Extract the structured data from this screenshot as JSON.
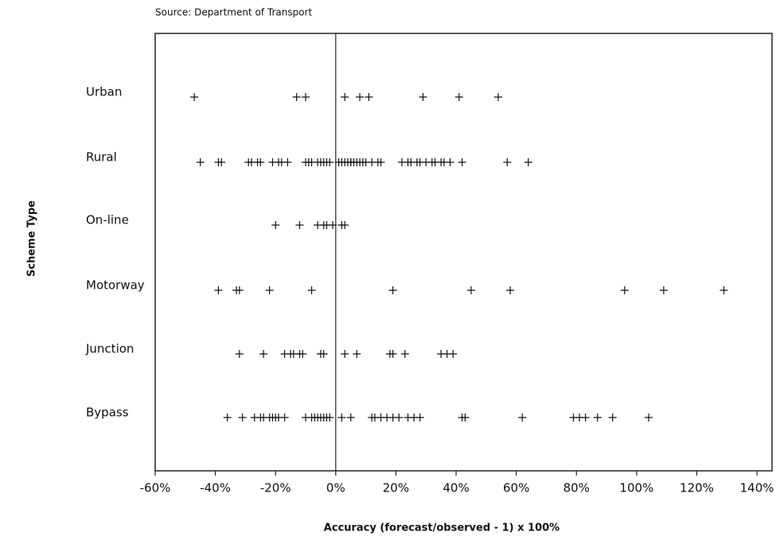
{
  "chart_data": {
    "type": "strip",
    "source": "Source:    Department of Transport",
    "ylabel": "Scheme Type",
    "xlabel": "Accuracy (forecast/observed - 1) x 100%",
    "color": "#111111",
    "xlim": [
      -60,
      145
    ],
    "xticks": [
      {
        "value": -60,
        "label": "-60%"
      },
      {
        "value": -40,
        "label": "-40%"
      },
      {
        "value": -20,
        "label": "-20%"
      },
      {
        "value": 0,
        "label": "0%"
      },
      {
        "value": 20,
        "label": "20%"
      },
      {
        "value": 40,
        "label": "40%"
      },
      {
        "value": 60,
        "label": "60%"
      },
      {
        "value": 80,
        "label": "80%"
      },
      {
        "value": 100,
        "label": "100%"
      },
      {
        "value": 120,
        "label": "120%"
      },
      {
        "value": 140,
        "label": "140%"
      }
    ],
    "series": [
      {
        "name": "Urban",
        "values": [
          -47,
          -13,
          -10,
          3,
          8,
          11,
          29,
          41,
          54
        ]
      },
      {
        "name": "Rural",
        "values": [
          -45,
          -39,
          -38,
          -29,
          -28,
          -26,
          -25,
          -21,
          -19,
          -18,
          -16,
          -10,
          -9,
          -8,
          -6,
          -5,
          -4,
          -3,
          -2,
          1,
          2,
          3,
          4,
          5,
          5,
          6,
          7,
          8,
          9,
          10,
          12,
          14,
          15,
          22,
          24,
          25,
          27,
          28,
          30,
          32,
          33,
          35,
          36,
          38,
          42,
          57,
          64
        ]
      },
      {
        "name": "On-line",
        "values": [
          -20,
          -12,
          -6,
          -4,
          -3,
          -1,
          2,
          3
        ]
      },
      {
        "name": "Motorway",
        "values": [
          -39,
          -33,
          -32,
          -22,
          -8,
          19,
          45,
          58,
          96,
          109,
          129
        ]
      },
      {
        "name": "Junction",
        "values": [
          -32,
          -24,
          -17,
          -15,
          -14,
          -12,
          -11,
          -5,
          -4,
          3,
          7,
          18,
          19,
          23,
          35,
          37,
          39
        ]
      },
      {
        "name": "Bypass",
        "values": [
          -36,
          -31,
          -27,
          -25,
          -24,
          -22,
          -21,
          -20,
          -19,
          -17,
          -10,
          -8,
          -7,
          -6,
          -5,
          -4,
          -3,
          -2,
          2,
          5,
          12,
          13,
          15,
          17,
          19,
          21,
          24,
          26,
          28,
          42,
          43,
          62,
          79,
          81,
          83,
          87,
          92,
          104
        ]
      }
    ]
  }
}
